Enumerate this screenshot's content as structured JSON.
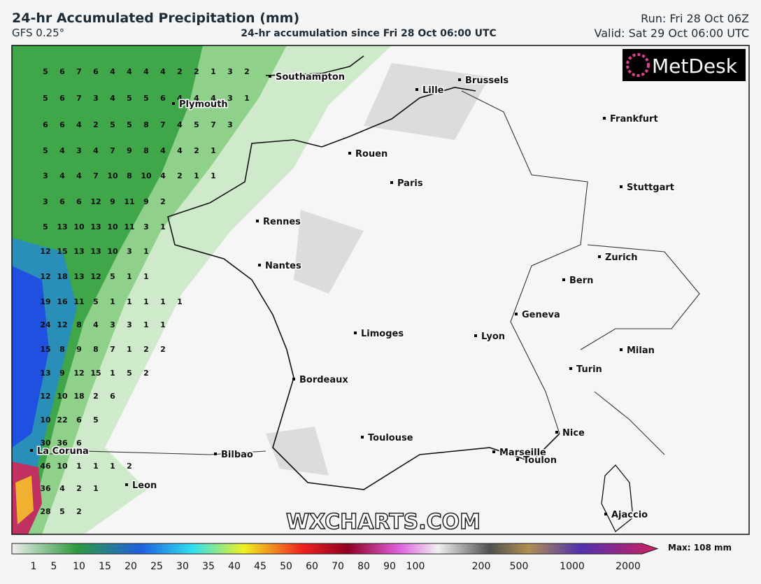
{
  "header": {
    "title": "24-hr Accumulated Precipitation (mm)",
    "model": "GFS 0.25°",
    "subtitle": "24-hr accumulation since Fri 28 Oct 06:00 UTC",
    "run": "Run: Fri 28 Oct 06Z",
    "valid": "Valid: Sat 29 Oct 06:00 UTC"
  },
  "logo": "MetDesk",
  "watermark": "WXCHARTS.COM",
  "cities": [
    "Southampton",
    "Plymouth",
    "Lille",
    "Brussels",
    "Frankfurt",
    "Rouen",
    "Paris",
    "Stuttgart",
    "Rennes",
    "Nantes",
    "Zurich",
    "Bern",
    "Geneva",
    "Limoges",
    "Lyon",
    "Milan",
    "Turin",
    "Bordeaux",
    "Toulouse",
    "Nice",
    "Marseille",
    "Toulon",
    "Bilbao",
    "La Coruna",
    "Leon",
    "Ajaccio"
  ],
  "grid_values": [
    [
      5,
      6,
      7,
      6,
      4,
      4,
      4,
      4,
      2,
      2,
      1,
      3,
      2
    ],
    [
      5,
      6,
      7,
      3,
      4,
      5,
      5,
      6,
      4,
      4,
      4,
      3,
      1
    ],
    [
      6,
      6,
      4,
      2,
      5,
      5,
      8,
      7,
      4,
      5,
      7,
      3
    ],
    [
      5,
      4,
      3,
      4,
      7,
      9,
      8,
      4,
      4,
      2,
      1
    ],
    [
      3,
      4,
      4,
      7,
      10,
      8,
      10,
      4,
      2,
      1,
      1
    ],
    [
      3,
      6,
      6,
      12,
      9,
      11,
      9,
      2
    ],
    [
      5,
      13,
      10,
      13,
      10,
      11,
      3,
      1
    ],
    [
      12,
      15,
      13,
      13,
      10,
      3,
      1
    ],
    [
      12,
      18,
      13,
      12,
      5,
      1,
      1
    ],
    [
      19,
      16,
      11,
      5,
      1,
      1,
      1,
      1,
      1
    ],
    [
      24,
      12,
      8,
      4,
      3,
      3,
      1,
      1
    ],
    [
      15,
      8,
      9,
      8,
      7,
      1,
      2,
      2
    ],
    [
      13,
      9,
      12,
      15,
      1,
      5,
      2
    ],
    [
      12,
      10,
      18,
      2,
      6
    ],
    [
      10,
      22,
      6,
      5
    ],
    [
      30,
      36,
      6
    ],
    [
      46,
      10,
      1,
      1,
      1,
      2
    ],
    [
      36,
      4,
      2,
      1
    ],
    [
      28,
      5,
      2
    ]
  ],
  "colorbar": {
    "labels": [
      1,
      5,
      10,
      15,
      20,
      25,
      30,
      35,
      40,
      45,
      50,
      60,
      70,
      80,
      90,
      100,
      200,
      500,
      1000,
      2000
    ],
    "max_label": "Max: 108 mm"
  }
}
